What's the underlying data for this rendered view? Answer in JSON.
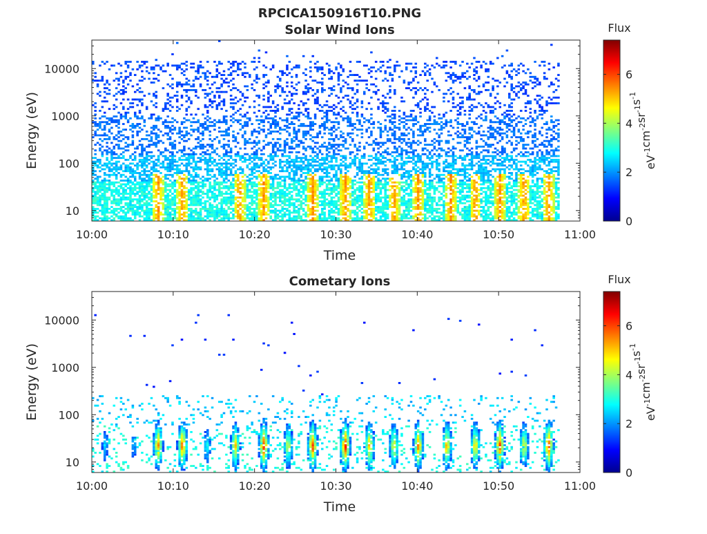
{
  "figure": {
    "title": "RPCICA150916T10.PNG"
  },
  "colormap": "jet",
  "chart_data": [
    {
      "type": "heatmap",
      "title": "Solar Wind Ions",
      "xlabel": "Time",
      "ylabel": "Energy (eV)",
      "xticks": [
        "10:00",
        "10:10",
        "10:20",
        "10:30",
        "10:40",
        "10:50",
        "11:00"
      ],
      "xlim": [
        "10:00",
        "11:00"
      ],
      "data_end": "10:57.5",
      "yscale": "log",
      "yticks": [
        10,
        100,
        1000,
        10000
      ],
      "ytick_labels": [
        "10",
        "100",
        "1000",
        "10000"
      ],
      "ylim": [
        6,
        40000
      ],
      "colorbar": {
        "label": "Flux",
        "unit_base": "eV",
        "unit_exps": [
          "-1",
          "-2",
          "-1",
          "-1"
        ],
        "unit_parts": [
          "eV",
          "cm",
          "sr",
          "s"
        ],
        "range": [
          0,
          7.4
        ],
        "ticks": [
          0,
          2,
          4,
          6
        ],
        "tick_labels": [
          "0",
          "2",
          "4",
          "6"
        ]
      },
      "description_values": {
        "dense_band_energy_eV": [
          6,
          40
        ],
        "background_flux": 2.5,
        "sparse_high_energy_flux": 1.2,
        "peak_times": [
          "10:08",
          "10:11",
          "10:18",
          "10:21",
          "10:27",
          "10:31",
          "10:34",
          "10:37",
          "10:40",
          "10:44",
          "10:47",
          "10:50",
          "10:53",
          "10:56"
        ],
        "peak_flux": 5.2
      }
    },
    {
      "type": "heatmap",
      "title": "Cometary Ions",
      "xlabel": "Time",
      "ylabel": "Energy (eV)",
      "xticks": [
        "10:00",
        "10:10",
        "10:20",
        "10:30",
        "10:40",
        "10:50",
        "11:00"
      ],
      "xlim": [
        "10:00",
        "11:00"
      ],
      "data_end": "10:57.5",
      "yscale": "log",
      "yticks": [
        10,
        100,
        1000,
        10000
      ],
      "ytick_labels": [
        "10",
        "100",
        "1000",
        "10000"
      ],
      "ylim": [
        6,
        40000
      ],
      "colorbar": {
        "label": "Flux",
        "unit_parts": [
          "eV",
          "cm",
          "sr",
          "s"
        ],
        "unit_exps": [
          "-1",
          "-2",
          "-1",
          "-1"
        ],
        "range": [
          0,
          7.4
        ],
        "ticks": [
          0,
          2,
          4,
          6
        ],
        "tick_labels": [
          "0",
          "2",
          "4",
          "6"
        ]
      },
      "description_values": {
        "burst_times": [
          "10:01.5",
          "10:05",
          "10:08",
          "10:11",
          "10:14",
          "10:17.5",
          "10:21",
          "10:24",
          "10:27",
          "10:31",
          "10:34",
          "10:37",
          "10:40",
          "10:43.5",
          "10:47",
          "10:50",
          "10:53",
          "10:56"
        ],
        "burst_peak_flux": [
          2.8,
          2.5,
          5.8,
          6.2,
          3.2,
          5.2,
          6.4,
          4.8,
          6.3,
          6.8,
          5.6,
          5.0,
          6.0,
          5.6,
          5.4,
          6.2,
          5.0,
          6.4
        ],
        "burst_energy_eV": [
          10,
          40
        ],
        "sparse_high_energy_flux": 1.0
      }
    }
  ]
}
